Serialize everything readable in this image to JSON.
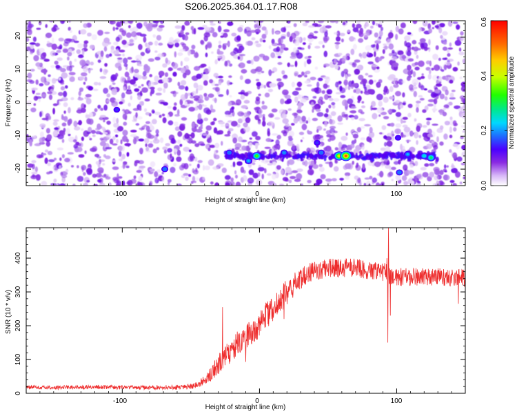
{
  "title": "S206.2025.364.01.17.R08",
  "colors": {
    "series_line": "#ee2c2c",
    "axis": "#000000",
    "heatmap_background": "#ffffff"
  },
  "chart_data": [
    {
      "type": "heatmap",
      "xlabel": "Height of straight line (km)",
      "ylabel": "Frequency (Hz)",
      "xlim": [
        -170,
        150
      ],
      "ylim": [
        -25,
        25
      ],
      "xticks": [
        -100,
        0,
        100
      ],
      "yticks": [
        -20,
        -10,
        0,
        10,
        20
      ],
      "x_tick_labels": [
        "-100",
        "0",
        "100"
      ],
      "y_tick_labels": [
        "-20",
        "-10",
        "0",
        "10",
        "20"
      ],
      "colorbar": {
        "label": "Normalized spectral amplitude",
        "range": [
          0.0,
          0.6
        ],
        "ticks": [
          "0.0",
          "0.2",
          "0.4",
          "0.6"
        ]
      },
      "signal_band": {
        "frequency_hz": -16,
        "x_range": [
          -25,
          130
        ]
      },
      "peaks": [
        {
          "x": -2,
          "y": -16,
          "value": 0.35
        },
        {
          "x": 58,
          "y": -16,
          "value": 0.45
        },
        {
          "x": 63,
          "y": -16,
          "value": 0.55
        },
        {
          "x": 125,
          "y": -16.5,
          "value": 0.3
        },
        {
          "x": 120,
          "y": -16,
          "value": 0.25
        },
        {
          "x": 108,
          "y": -15.5,
          "value": 0.22
        },
        {
          "x": -8,
          "y": -17.5,
          "value": 0.22
        },
        {
          "x": -22,
          "y": -15,
          "value": 0.18
        },
        {
          "x": 18,
          "y": -15,
          "value": 0.2
        },
        {
          "x": 45,
          "y": -15,
          "value": 0.18
        },
        {
          "x": 102,
          "y": -21,
          "value": 0.18
        },
        {
          "x": -69,
          "y": -20,
          "value": 0.18
        },
        {
          "x": -104,
          "y": -2,
          "value": 0.15
        },
        {
          "x": 42,
          "y": -12,
          "value": 0.15
        },
        {
          "x": 101,
          "y": -10.5,
          "value": 0.14
        }
      ]
    },
    {
      "type": "line",
      "xlabel": "Height of straight line (km)",
      "ylabel": "SNR (10 * v/v)",
      "xlim": [
        -170,
        150
      ],
      "ylim": [
        0,
        490
      ],
      "xticks": [
        -100,
        0,
        100
      ],
      "yticks": [
        0,
        100,
        200,
        300,
        400
      ],
      "x_tick_labels": [
        "-100",
        "0",
        "100"
      ],
      "y_tick_labels": [
        "0",
        "100",
        "200",
        "300",
        "400"
      ],
      "series": [
        {
          "name": "SNR",
          "x": [
            -170,
            -150,
            -120,
            -90,
            -60,
            -50,
            -45,
            -40,
            -36,
            -30,
            -25,
            -20,
            -15,
            -10,
            -5,
            0,
            5,
            10,
            15,
            20,
            25,
            30,
            35,
            40,
            50,
            60,
            70,
            80,
            90,
            95,
            100,
            110,
            120,
            130,
            140,
            150
          ],
          "values": [
            18,
            17,
            18,
            17,
            18,
            20,
            25,
            40,
            55,
            85,
            110,
            130,
            150,
            170,
            185,
            205,
            230,
            250,
            275,
            300,
            320,
            340,
            355,
            362,
            370,
            370,
            372,
            365,
            360,
            350,
            345,
            345,
            345,
            345,
            343,
            340
          ],
          "noise_amplitude": [
            6,
            6,
            6,
            6,
            7,
            8,
            10,
            15,
            20,
            30,
            35,
            38,
            40,
            40,
            40,
            40,
            40,
            40,
            40,
            38,
            35,
            32,
            30,
            28,
            28,
            28,
            28,
            28,
            28,
            28,
            28,
            26,
            26,
            26,
            26,
            26
          ],
          "spikes": [
            {
              "x": -27,
              "y": 255
            },
            {
              "x": -33,
              "y": 78
            },
            {
              "x": 94,
              "y": 490
            },
            {
              "x": 93.6,
              "y": 150
            },
            {
              "x": 92.8,
              "y": 400
            },
            {
              "x": 95.4,
              "y": 230
            },
            {
              "x": 145,
              "y": 265
            },
            {
              "x": -10,
              "y": 93
            },
            {
              "x": 18,
              "y": 220
            }
          ]
        }
      ]
    }
  ]
}
